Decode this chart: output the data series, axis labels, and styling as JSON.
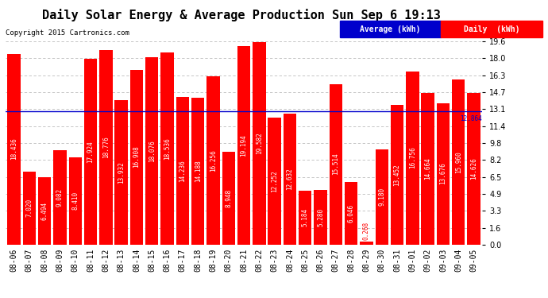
{
  "title": "Daily Solar Energy & Average Production Sun Sep 6 19:13",
  "copyright": "Copyright 2015 Cartronics.com",
  "categories": [
    "08-06",
    "08-07",
    "08-08",
    "08-09",
    "08-10",
    "08-11",
    "08-12",
    "08-13",
    "08-14",
    "08-15",
    "08-16",
    "08-17",
    "08-18",
    "08-19",
    "08-20",
    "08-21",
    "08-22",
    "08-23",
    "08-24",
    "08-25",
    "08-26",
    "08-27",
    "08-28",
    "08-29",
    "08-30",
    "08-31",
    "09-01",
    "09-02",
    "09-03",
    "09-04",
    "09-05"
  ],
  "values": [
    18.436,
    7.02,
    6.494,
    9.082,
    8.41,
    17.924,
    18.776,
    13.932,
    16.908,
    18.076,
    18.536,
    14.236,
    14.188,
    16.256,
    8.948,
    19.194,
    19.582,
    12.252,
    12.632,
    5.184,
    5.28,
    15.514,
    6.046,
    0.268,
    9.18,
    13.452,
    16.756,
    14.664,
    13.676,
    15.96,
    14.626
  ],
  "average": 12.864,
  "bar_color": "#ff0000",
  "avg_line_color": "#0000cc",
  "background_color": "#ffffff",
  "plot_bg_color": "#ffffff",
  "grid_color": "#bbbbbb",
  "ylim": [
    0,
    19.6
  ],
  "yticks": [
    0.0,
    1.6,
    3.3,
    4.9,
    6.5,
    8.2,
    9.8,
    11.4,
    13.1,
    14.7,
    16.3,
    18.0,
    19.6
  ],
  "title_fontsize": 11,
  "copyright_fontsize": 6.5,
  "bar_label_fontsize": 5.5,
  "tick_fontsize": 7,
  "avg_label_fontsize": 5.5,
  "legend_avg_label": "Average (kWh)",
  "legend_daily_label": "Daily  (kWh)",
  "legend_fontsize": 7
}
